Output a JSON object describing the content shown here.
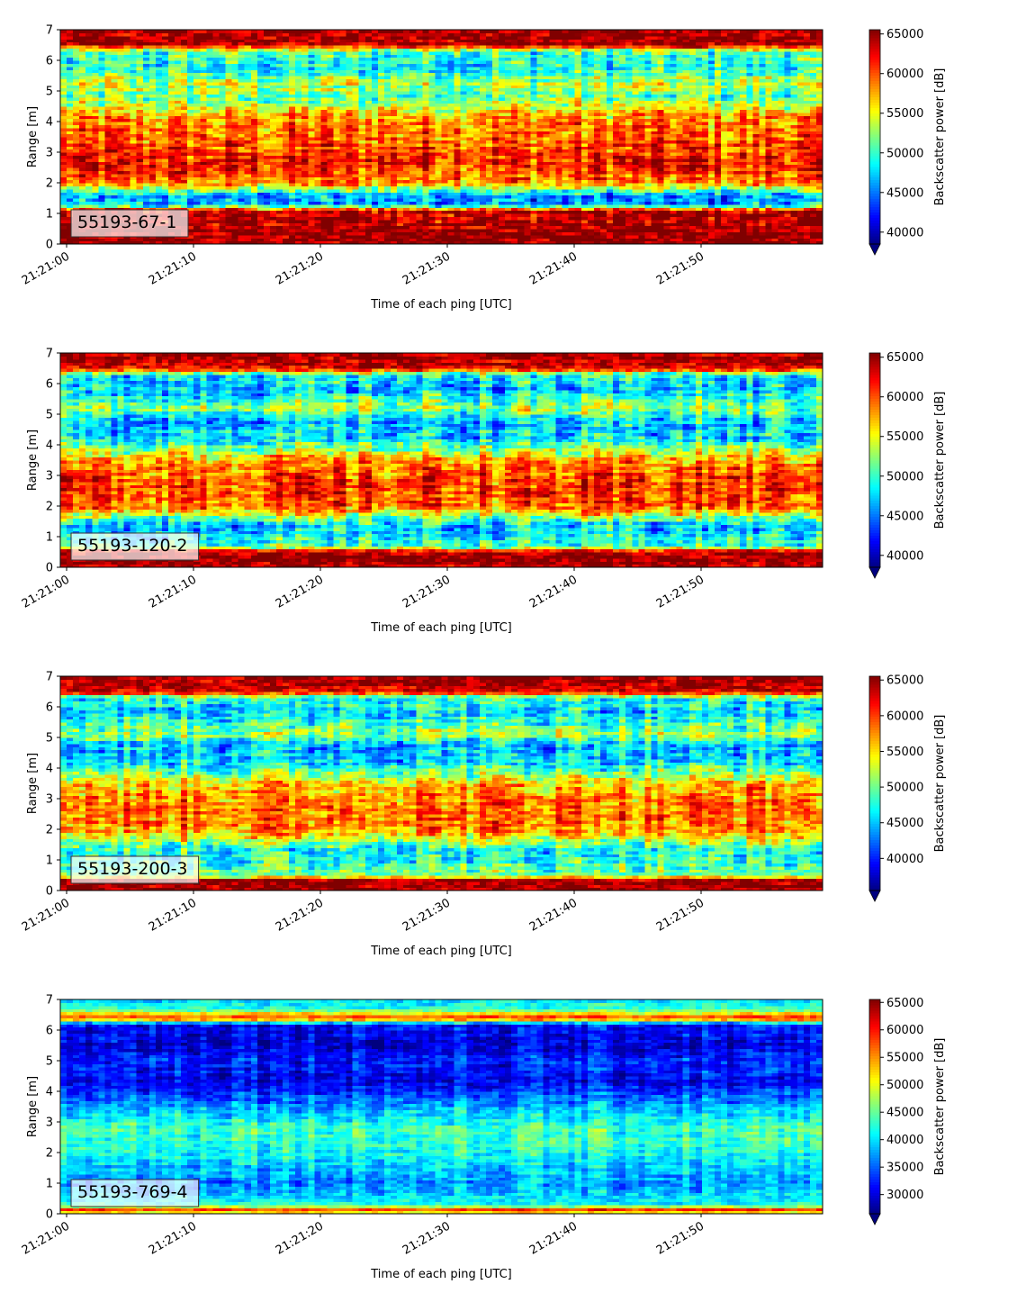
{
  "figure": {
    "xlabel": "Time of each ping [UTC]",
    "ylabel": "Range [m]",
    "colorbar_label": "Backscatter power [dB]"
  },
  "chart_data": [
    {
      "type": "heatmap",
      "station": "55193-67-1",
      "x_ticks": [
        "21:21:00",
        "21:21:10",
        "21:21:20",
        "21:21:30",
        "21:21:40",
        "21:21:50"
      ],
      "y_ticks": [
        "0",
        "1",
        "2",
        "3",
        "4",
        "5",
        "6",
        "7"
      ],
      "ylim": [
        0,
        7
      ],
      "colorbar_ticks": [
        "40000",
        "45000",
        "50000",
        "55000",
        "60000",
        "65000"
      ],
      "clim": [
        38500,
        65535
      ],
      "colormap": "jet",
      "profile": [
        {
          "r": 0,
          "v": 65000
        },
        {
          "r": 0.15,
          "v": 65000
        },
        {
          "r": 0.3,
          "v": 65000
        },
        {
          "r": 1.1,
          "v": 64000
        },
        {
          "r": 1.3,
          "v": 46000
        },
        {
          "r": 1.6,
          "v": 46000
        },
        {
          "r": 2,
          "v": 58000
        },
        {
          "r": 2.6,
          "v": 62000
        },
        {
          "r": 3.3,
          "v": 60000
        },
        {
          "r": 4.2,
          "v": 58000
        },
        {
          "r": 4.8,
          "v": 51000
        },
        {
          "r": 5.3,
          "v": 54000
        },
        {
          "r": 5.7,
          "v": 49000
        },
        {
          "r": 6.3,
          "v": 50000
        },
        {
          "r": 6.5,
          "v": 64000
        },
        {
          "r": 7,
          "v": 65000
        }
      ],
      "noise": 6500
    },
    {
      "type": "heatmap",
      "station": "55193-120-2",
      "x_ticks": [
        "21:21:00",
        "21:21:10",
        "21:21:20",
        "21:21:30",
        "21:21:40",
        "21:21:50"
      ],
      "y_ticks": [
        "0",
        "1",
        "2",
        "3",
        "4",
        "5",
        "6",
        "7"
      ],
      "ylim": [
        0,
        7
      ],
      "colorbar_ticks": [
        "40000",
        "45000",
        "50000",
        "55000",
        "60000",
        "65000"
      ],
      "clim": [
        38500,
        65535
      ],
      "colormap": "jet",
      "profile": [
        {
          "r": 0,
          "v": 63000
        },
        {
          "r": 0.1,
          "v": 65000
        },
        {
          "r": 0.5,
          "v": 65000
        },
        {
          "r": 0.7,
          "v": 50000
        },
        {
          "r": 1.4,
          "v": 47000
        },
        {
          "r": 2,
          "v": 60000
        },
        {
          "r": 2.8,
          "v": 61000
        },
        {
          "r": 3.5,
          "v": 58000
        },
        {
          "r": 4.2,
          "v": 48000
        },
        {
          "r": 4.8,
          "v": 47000
        },
        {
          "r": 5.2,
          "v": 53000
        },
        {
          "r": 5.8,
          "v": 47000
        },
        {
          "r": 6.3,
          "v": 49000
        },
        {
          "r": 6.5,
          "v": 63000
        },
        {
          "r": 7,
          "v": 65000
        }
      ],
      "noise": 6500
    },
    {
      "type": "heatmap",
      "station": "55193-200-3",
      "x_ticks": [
        "21:21:00",
        "21:21:10",
        "21:21:20",
        "21:21:30",
        "21:21:40",
        "21:21:50"
      ],
      "y_ticks": [
        "0",
        "1",
        "2",
        "3",
        "4",
        "5",
        "6",
        "7"
      ],
      "ylim": [
        0,
        7
      ],
      "colorbar_ticks": [
        "40000",
        "45000",
        "50000",
        "55000",
        "60000",
        "65000"
      ],
      "clim": [
        35500,
        65535
      ],
      "colormap": "jet",
      "profile": [
        {
          "r": 0,
          "v": 65000
        },
        {
          "r": 0.35,
          "v": 65000
        },
        {
          "r": 0.5,
          "v": 50000
        },
        {
          "r": 1.3,
          "v": 47000
        },
        {
          "r": 2,
          "v": 58000
        },
        {
          "r": 2.8,
          "v": 59000
        },
        {
          "r": 3.5,
          "v": 56000
        },
        {
          "r": 4.2,
          "v": 46000
        },
        {
          "r": 4.8,
          "v": 45000
        },
        {
          "r": 5.1,
          "v": 52000
        },
        {
          "r": 5.8,
          "v": 46000
        },
        {
          "r": 6.3,
          "v": 48000
        },
        {
          "r": 6.5,
          "v": 63000
        },
        {
          "r": 7,
          "v": 65000
        }
      ],
      "noise": 7000
    },
    {
      "type": "heatmap",
      "station": "55193-769-4",
      "x_ticks": [
        "21:21:00",
        "21:21:10",
        "21:21:20",
        "21:21:30",
        "21:21:40",
        "21:21:50"
      ],
      "y_ticks": [
        "0",
        "1",
        "2",
        "3",
        "4",
        "5",
        "6",
        "7"
      ],
      "ylim": [
        0,
        7
      ],
      "colorbar_ticks": [
        "30000",
        "35000",
        "40000",
        "45000",
        "50000",
        "55000",
        "60000",
        "65000"
      ],
      "clim": [
        26500,
        65535
      ],
      "colormap": "jet",
      "profile": [
        {
          "r": 0,
          "v": 45000
        },
        {
          "r": 0.12,
          "v": 62000
        },
        {
          "r": 0.3,
          "v": 42000
        },
        {
          "r": 1,
          "v": 37000
        },
        {
          "r": 2,
          "v": 42000
        },
        {
          "r": 2.8,
          "v": 44000
        },
        {
          "r": 3.5,
          "v": 38000
        },
        {
          "r": 4.3,
          "v": 31000
        },
        {
          "r": 5,
          "v": 33000
        },
        {
          "r": 5.5,
          "v": 30000
        },
        {
          "r": 6.2,
          "v": 32000
        },
        {
          "r": 6.4,
          "v": 60000
        },
        {
          "r": 6.7,
          "v": 43000
        },
        {
          "r": 7,
          "v": 40000
        }
      ],
      "noise": 6000
    }
  ]
}
